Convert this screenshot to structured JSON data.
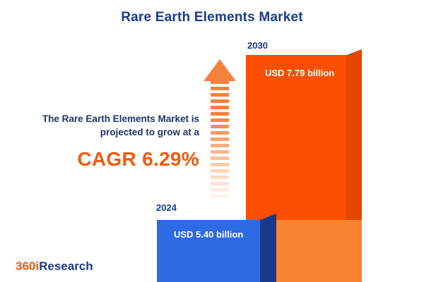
{
  "title": "Rare Earth Elements Market",
  "promo": {
    "line1": "The Rare Earth Elements Market is",
    "line2": "projected to grow at a",
    "cagr": "CAGR 6.29%"
  },
  "chart_data": {
    "type": "bar",
    "title": "Rare Earth Elements Market",
    "categories": [
      "2024",
      "2030"
    ],
    "values": [
      5.4,
      7.79
    ],
    "unit": "USD billion",
    "value_labels": [
      "USD 5.40 billion",
      "USD 7.79 billion"
    ],
    "cagr_percent": 6.29,
    "bar_colors": [
      "#2d6ae3",
      "#fb4e00"
    ],
    "legend_position": "none",
    "grid": false
  },
  "logo": {
    "prefix": "360i",
    "suffix": "Research"
  },
  "colors": {
    "title_navy": "#1b3a8c",
    "text_navy": "#20306b",
    "accent_orange": "#f4590a",
    "bar_blue": "#2d6ae3",
    "bar_blue_side": "#173a8c",
    "bar_orange": "#fb4e00",
    "bar_orange_side": "#e34600",
    "bar_orange_light": "#f9832e",
    "arrow_orange": "#f5813c"
  }
}
